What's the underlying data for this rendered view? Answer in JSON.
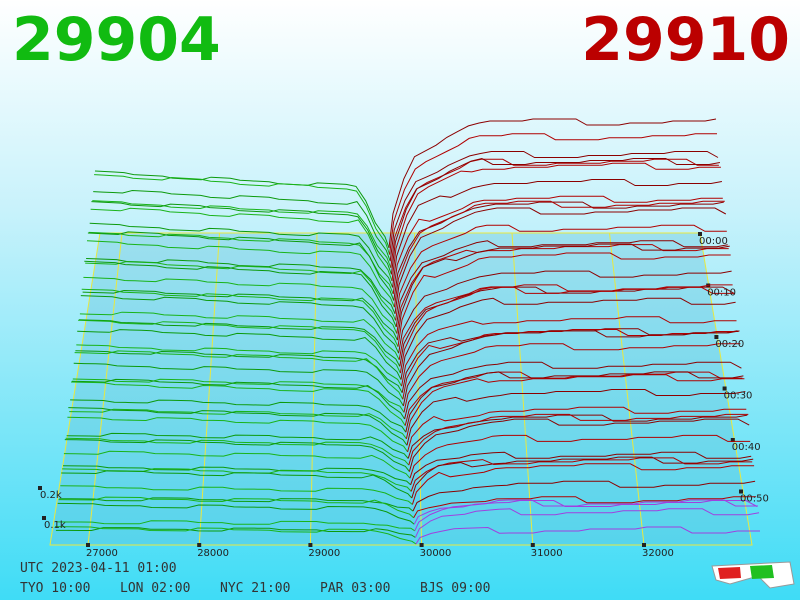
{
  "header": {
    "bid": "29904",
    "ask": "29910"
  },
  "axes": {
    "price_labels": [
      "27000",
      "28000",
      "29000",
      "30000",
      "31000",
      "32000"
    ],
    "depth_labels": [
      "0.2k",
      "0.1k"
    ],
    "time_labels": [
      "00:00",
      "00:10",
      "00:20",
      "00:30",
      "00:40",
      "00:50"
    ]
  },
  "footer": {
    "utc": "UTC 2023-04-11 01:00",
    "zones": [
      "TYO 10:00",
      "LON 02:00",
      "NYC 21:00",
      "PAR 03:00",
      "BJS 09:00"
    ]
  }
}
